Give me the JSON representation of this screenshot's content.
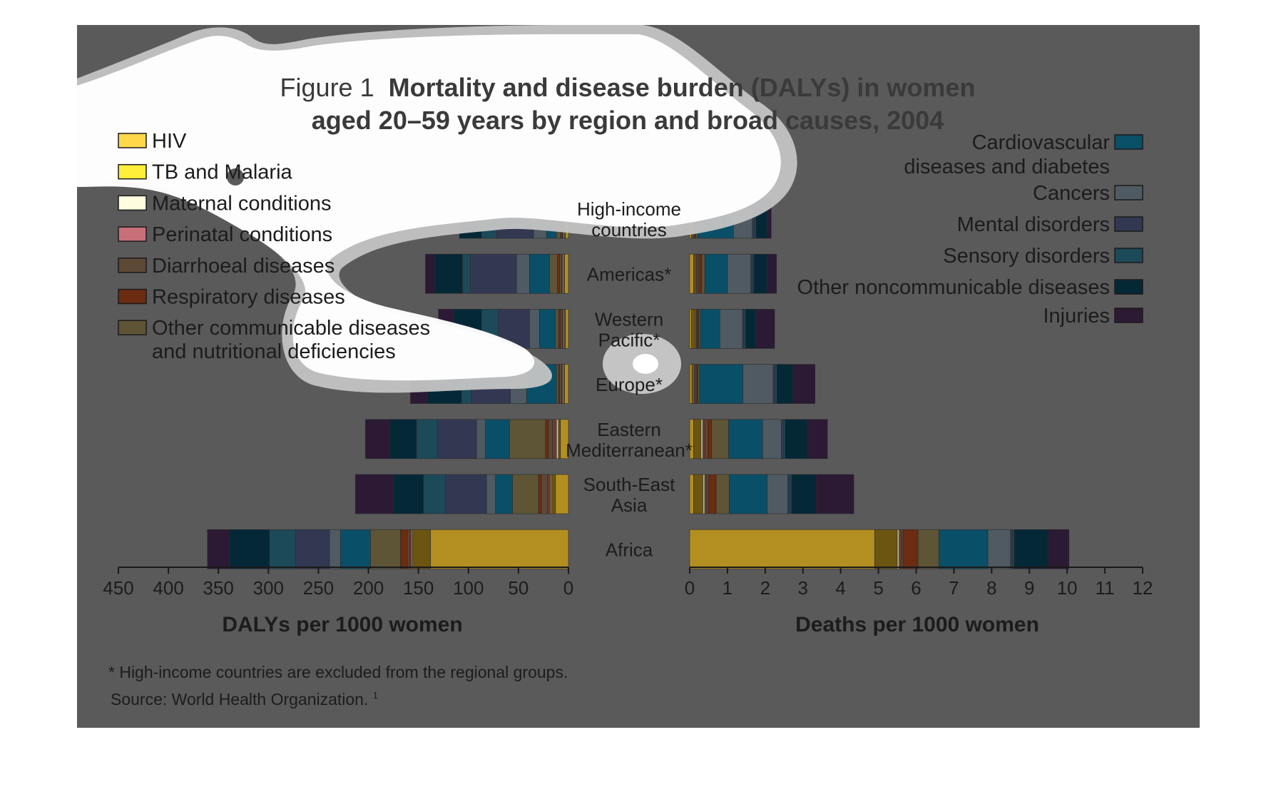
{
  "colors": {
    "panel_background": "#5a5a5a",
    "overlay_blob": "#ffffff",
    "overlay_edge": "#c4c4c4",
    "text": "#1c1c1c",
    "axis": "#1a1a1a"
  },
  "chart_data": {
    "type": "bar",
    "subtype": "back-to-back horizontal stacked bar",
    "title_prefix": "Figure 1",
    "title_bold_line1": "Mortality and disease burden (DALYs) in women",
    "title_bold_line2": "aged 20–59 years by region and broad causes, 2004",
    "footnote": "* High-income countries are excluded from the regional groups.",
    "source": "Source: World Health Organization.",
    "source_superscript": "1",
    "regions": [
      {
        "lines": [
          "High-income",
          "countries"
        ]
      },
      {
        "lines": [
          "Americas*"
        ]
      },
      {
        "lines": [
          "Western",
          "Pacific*"
        ]
      },
      {
        "lines": [
          "Europe*"
        ]
      },
      {
        "lines": [
          "Eastern",
          "Mediterranean*"
        ]
      },
      {
        "lines": [
          "South-East",
          "Asia"
        ]
      },
      {
        "lines": [
          "Africa"
        ]
      }
    ],
    "causes": [
      {
        "name_lines": [
          "HIV"
        ],
        "color": "#b38f22",
        "legend_color": "#ffd84a",
        "legend_side": "left"
      },
      {
        "name_lines": [
          "TB and Malaria"
        ],
        "color": "#6b5510",
        "legend_color": "#ffef3a",
        "legend_side": "left"
      },
      {
        "name_lines": [
          "Maternal conditions"
        ],
        "color": "#c2b88a",
        "legend_color": "#fffde0",
        "legend_side": "left"
      },
      {
        "name_lines": [
          "Perinatal conditions"
        ],
        "color": "#6e3a34",
        "legend_color": "#c8707a",
        "legend_side": "left"
      },
      {
        "name_lines": [
          "Diarrhoeal diseases"
        ],
        "color": "#5c4a37",
        "legend_color": "#5c4a37",
        "legend_side": "left"
      },
      {
        "name_lines": [
          "Respiratory diseases"
        ],
        "color": "#6b2c12",
        "legend_color": "#6b2c12",
        "legend_side": "left"
      },
      {
        "name_lines": [
          "Other communicable diseases",
          "and nutritional deficiencies"
        ],
        "color": "#5e5436",
        "legend_color": "#5e5436",
        "legend_side": "left"
      },
      {
        "name_lines": [
          "Cardiovascular",
          "diseases and diabetes"
        ],
        "color": "#0a4f68",
        "legend_color": "#0a4f68",
        "legend_side": "right"
      },
      {
        "name_lines": [
          "Cancers"
        ],
        "color": "#4f5a62",
        "legend_color": "#4f5a62",
        "legend_side": "right"
      },
      {
        "name_lines": [
          "Mental disorders"
        ],
        "color": "#333852",
        "legend_color": "#333852",
        "legend_side": "right"
      },
      {
        "name_lines": [
          "Sensory disorders"
        ],
        "color": "#1c4a58",
        "legend_color": "#1c4a58",
        "legend_side": "right"
      },
      {
        "name_lines": [
          "Other noncommunicable diseases"
        ],
        "color": "#052837",
        "legend_color": "#052837",
        "legend_side": "right"
      },
      {
        "name_lines": [
          "Injuries"
        ],
        "color": "#2c1a35",
        "legend_color": "#2c1a35",
        "legend_side": "right"
      }
    ],
    "dalys": {
      "xlabel": "DALYs per 1000 women",
      "xlim": [
        450,
        0
      ],
      "ticks": [
        450,
        400,
        350,
        300,
        250,
        200,
        150,
        100,
        50,
        0
      ],
      "values_by_region": [
        [
          3,
          1,
          1,
          1,
          1,
          1,
          4,
          10,
          13,
          37,
          15,
          22,
          0
        ],
        [
          4,
          1,
          1,
          1,
          2,
          2,
          8,
          20,
          13,
          46,
          8,
          28,
          9
        ],
        [
          3,
          1,
          1,
          1,
          2,
          2,
          3,
          16,
          10,
          31,
          17,
          28,
          15
        ],
        [
          4,
          1,
          1,
          1,
          2,
          1,
          2,
          30,
          16,
          39,
          10,
          34,
          17
        ],
        [
          8,
          2,
          2,
          4,
          4,
          3,
          36,
          24,
          9,
          39,
          21,
          27,
          24
        ],
        [
          13,
          4,
          1,
          3,
          6,
          3,
          26,
          17,
          9,
          41,
          22,
          30,
          38
        ],
        [
          138,
          18,
          1,
          2,
          2,
          7,
          30,
          30,
          11,
          34,
          26,
          40,
          22
        ]
      ]
    },
    "deaths": {
      "xlabel": "Deaths per 1000 women",
      "xlim": [
        0,
        12
      ],
      "ticks": [
        0,
        1,
        2,
        3,
        4,
        5,
        6,
        7,
        8,
        9,
        10,
        11,
        12
      ],
      "values_by_region": [
        [
          0.05,
          0.02,
          0.02,
          0.02,
          0.02,
          0.03,
          0.05,
          0.95,
          0.5,
          0.05,
          0.05,
          0.3,
          0.1
        ],
        [
          0.1,
          0.05,
          0.02,
          0.02,
          0.05,
          0.08,
          0.08,
          0.6,
          0.62,
          0.04,
          0.04,
          0.35,
          0.25
        ],
        [
          0.05,
          0.1,
          0.02,
          0.02,
          0.02,
          0.03,
          0.04,
          0.52,
          0.6,
          0.04,
          0.04,
          0.27,
          0.5
        ],
        [
          0.06,
          0.04,
          0.02,
          0.02,
          0.04,
          0.04,
          0.04,
          1.15,
          0.8,
          0.05,
          0.05,
          0.43,
          0.58
        ],
        [
          0.1,
          0.2,
          0.05,
          0.06,
          0.07,
          0.1,
          0.45,
          0.9,
          0.5,
          0.05,
          0.05,
          0.6,
          0.52
        ],
        [
          0.1,
          0.25,
          0.05,
          0.05,
          0.05,
          0.2,
          0.35,
          1.0,
          0.55,
          0.05,
          0.05,
          0.65,
          1.0
        ],
        [
          4.9,
          0.6,
          0.05,
          0.05,
          0.05,
          0.4,
          0.55,
          1.3,
          0.6,
          0.05,
          0.05,
          0.9,
          0.55
        ]
      ]
    }
  }
}
